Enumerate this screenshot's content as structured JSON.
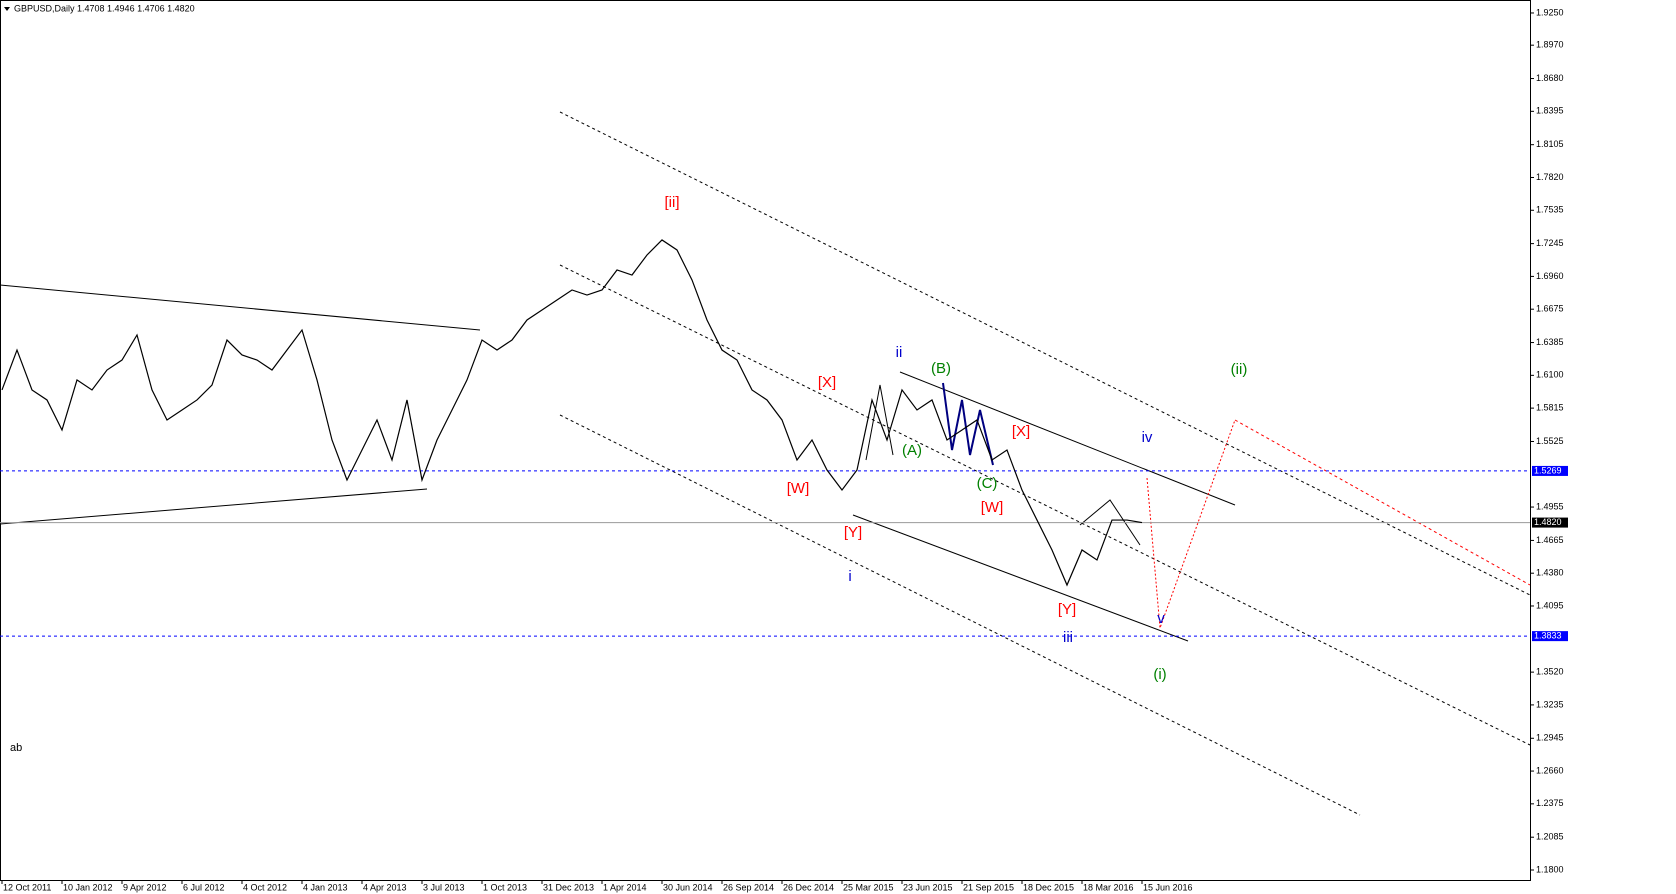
{
  "chart_data": {
    "type": "line",
    "title": "GBPUSD,Daily  1.4708 1.4946 1.4706 1.4820",
    "categories": [
      "12 Oct 2011",
      null,
      null,
      null,
      "10 Jan 2012",
      null,
      null,
      null,
      "9 Apr 2012",
      null,
      null,
      null,
      "6 Jul 2012",
      null,
      null,
      null,
      "4 Oct 2012",
      null,
      null,
      null,
      "4 Jan 2013",
      null,
      null,
      null,
      "4 Apr 2013",
      null,
      null,
      null,
      "3 Jul 2013",
      null,
      null,
      null,
      "1 Oct 2013",
      null,
      null,
      null,
      "31 Dec 2013",
      null,
      null,
      null,
      "1 Apr 2014",
      null,
      null,
      null,
      "30 Jun 2014",
      null,
      null,
      null,
      "26 Sep 2014",
      null,
      null,
      null,
      "26 Dec 2014",
      null,
      null,
      null,
      "25 Mar 2015",
      null,
      null,
      null,
      "23 Jun 2015",
      null,
      null,
      null,
      "21 Sep 2015",
      null,
      null,
      null,
      "18 Dec 2015",
      null,
      null,
      null,
      "18 Mar 2016",
      null,
      null,
      null,
      "15 Jun 2016"
    ],
    "series": [
      {
        "name": "GBPUSD",
        "color": "#000000",
        "values": [
          1.5973,
          1.632,
          1.5973,
          1.5886,
          1.5625,
          1.606,
          1.5973,
          1.6146,
          1.6233,
          1.6451,
          1.5973,
          1.5712,
          1.5799,
          1.5886,
          1.6016,
          1.6407,
          1.6277,
          1.6233,
          1.6146,
          1.632,
          1.6494,
          1.606,
          1.5538,
          1.519,
          1.5451,
          1.5712,
          1.5364,
          1.5886,
          1.519,
          1.5538,
          1.5799,
          1.606,
          1.6407,
          1.632,
          1.6407,
          1.6581,
          1.6668,
          1.6755,
          1.6842,
          1.6798,
          1.6842,
          1.7016,
          1.6972,
          1.7146,
          1.7277,
          1.719,
          1.6929,
          1.6581,
          1.632,
          1.6233,
          1.5973,
          1.5886,
          1.5712,
          1.5364,
          1.5538,
          1.5277,
          1.5103,
          1.5277,
          1.5886,
          1.5538,
          1.5973,
          1.5799,
          1.5886,
          1.5538,
          1.5625,
          1.5712,
          1.5364,
          1.5451,
          1.5103,
          1.4842,
          1.4582,
          1.4277,
          1.4582,
          1.4495,
          1.4842,
          1.4842,
          1.482
        ]
      }
    ],
    "ylim": [
      1.1713,
      1.9328
    ],
    "yticks": [
      {
        "value": 1.925,
        "label": "1.9250"
      },
      {
        "value": 1.897,
        "label": "1.8970"
      },
      {
        "value": 1.868,
        "label": "1.8680"
      },
      1.8395,
      1.8105,
      {
        "value": 1.782,
        "label": "1.7820"
      },
      1.7535,
      1.7245,
      {
        "value": 1.696,
        "label": "1.6960"
      },
      1.6675,
      1.6385,
      {
        "value": 1.61,
        "label": "1.6100"
      },
      1.5815,
      1.5525,
      1.4955,
      1.4665,
      {
        "value": 1.438,
        "label": "1.4380"
      },
      1.4095,
      {
        "value": 1.352,
        "label": "1.3520"
      },
      1.3235,
      1.2945,
      {
        "value": 1.266,
        "label": "1.2660"
      },
      1.2375,
      1.2085,
      {
        "value": 1.18,
        "label": "1.1800"
      }
    ],
    "levels": [
      {
        "value": 1.5269,
        "color": "#0000ff"
      },
      {
        "value": 1.3833,
        "color": "#0000ff"
      },
      {
        "value": 1.482,
        "label": "1.4820",
        "color": "#999999"
      }
    ],
    "annotations": [
      "[ii]",
      "[X]",
      "[W]",
      "[Y]",
      "i",
      "ii",
      "(B)",
      "(A)",
      "(C)",
      "[X]",
      "[W]",
      "iv",
      "[Y]",
      "iii",
      "v",
      "(i)",
      "(ii)",
      "ab"
    ]
  }
}
